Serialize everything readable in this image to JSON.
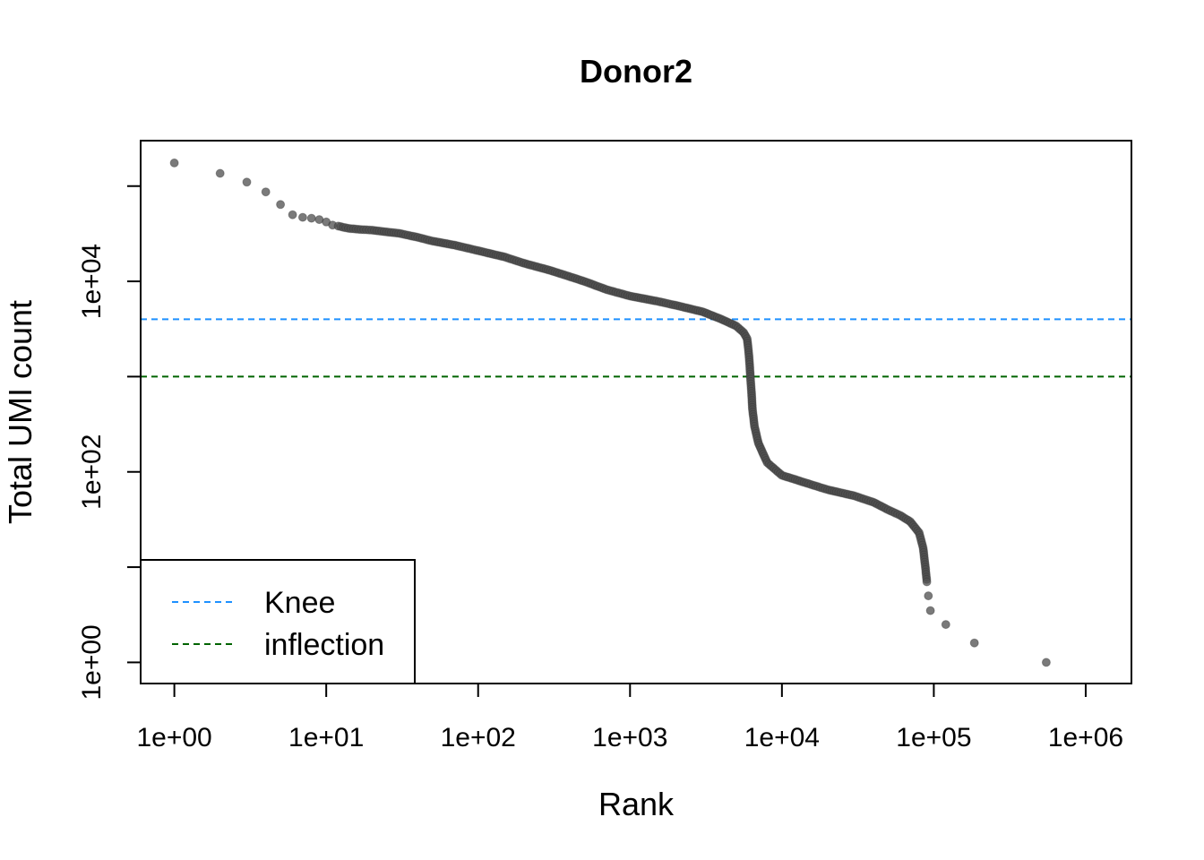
{
  "chart_data": {
    "type": "scatter",
    "title": "Donor2",
    "xlabel": "Rank",
    "ylabel": "Total UMI count",
    "x_scale": "log10",
    "y_scale": "log10",
    "xlim": [
      0.6,
      2000000
    ],
    "ylim": [
      0.6,
      300000
    ],
    "x_ticks": [
      1,
      10,
      100,
      1000,
      10000,
      100000,
      1000000
    ],
    "x_tick_labels": [
      "1e+00",
      "1e+01",
      "1e+02",
      "1e+03",
      "1e+04",
      "1e+05",
      "1e+06"
    ],
    "y_ticks": [
      1,
      10,
      100,
      1000,
      10000,
      100000
    ],
    "y_tick_labels": [
      "1e+00",
      "",
      "1e+02",
      "",
      "1e+04",
      ""
    ],
    "grid": false,
    "legend_position": "bottom-left",
    "point_color": "#4d4d4d",
    "series": [
      {
        "name": "",
        "points": [
          [
            1,
            175000
          ],
          [
            2,
            136000
          ],
          [
            3,
            110000
          ],
          [
            4,
            87000
          ],
          [
            5,
            64000
          ],
          [
            6,
            50000
          ],
          [
            7,
            47000
          ],
          [
            8,
            46000
          ],
          [
            9,
            44500
          ],
          [
            10,
            42000
          ],
          [
            11,
            39000
          ],
          [
            12,
            38000
          ],
          [
            14,
            36000
          ],
          [
            17,
            35000
          ],
          [
            20,
            34500
          ],
          [
            25,
            33000
          ],
          [
            30,
            32000
          ],
          [
            40,
            29000
          ],
          [
            50,
            26500
          ],
          [
            70,
            24000
          ],
          [
            100,
            21000
          ],
          [
            150,
            18000
          ],
          [
            200,
            15500
          ],
          [
            300,
            13000
          ],
          [
            500,
            10000
          ],
          [
            700,
            8200
          ],
          [
            1000,
            7000
          ],
          [
            1500,
            6200
          ],
          [
            2000,
            5600
          ],
          [
            3000,
            4800
          ],
          [
            4000,
            4000
          ],
          [
            5000,
            3400
          ],
          [
            5600,
            2900
          ],
          [
            5900,
            2500
          ],
          [
            6000,
            2000
          ],
          [
            6100,
            1500
          ],
          [
            6200,
            1000
          ],
          [
            6300,
            700
          ],
          [
            6400,
            450
          ],
          [
            6600,
            300
          ],
          [
            7000,
            200
          ],
          [
            8000,
            125
          ],
          [
            10000,
            92
          ],
          [
            15000,
            75
          ],
          [
            20000,
            65
          ],
          [
            30000,
            56
          ],
          [
            40000,
            48
          ],
          [
            50000,
            40
          ],
          [
            60000,
            35
          ],
          [
            70000,
            30
          ],
          [
            80000,
            23
          ],
          [
            85000,
            16
          ],
          [
            88000,
            10
          ],
          [
            90000,
            7
          ],
          [
            92000,
            5
          ],
          [
            95000,
            3.5
          ],
          [
            120000,
            2.5
          ],
          [
            185000,
            1.6
          ],
          [
            550000,
            1
          ]
        ]
      }
    ],
    "reference_lines": [
      {
        "name": "Knee",
        "y": 4000,
        "color": "#1e90ff",
        "style": "dashed"
      },
      {
        "name": "inflection",
        "y": 1000,
        "color": "#006400",
        "style": "dashed"
      }
    ]
  }
}
